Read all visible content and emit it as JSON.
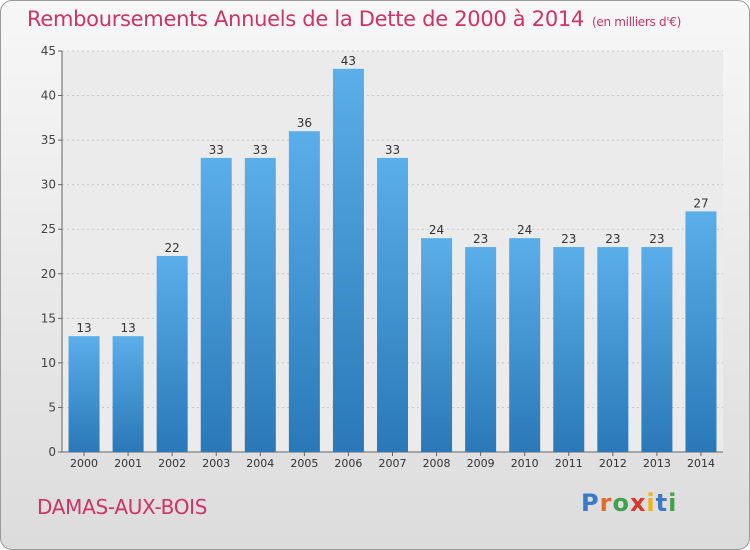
{
  "header": {
    "title": "Remboursements Annuels de la Dette de 2000 à 2014",
    "subtitle": "(en milliers d'€)"
  },
  "footer": {
    "commune": "DAMAS-AUX-BOIS",
    "logo_letters": [
      "P",
      "r",
      "o",
      "x",
      "i",
      "t",
      "i"
    ],
    "logo_colors": [
      "#3a78c9",
      "#e36c2a",
      "#3fa34d",
      "#d8372e",
      "#f0b419",
      "#3a78c9",
      "#3fa34d"
    ]
  },
  "chart_data": {
    "type": "bar",
    "title": "Remboursements Annuels de la Dette de 2000 à 2014",
    "subtitle": "(en milliers d'€)",
    "categories": [
      "2000",
      "2001",
      "2002",
      "2003",
      "2004",
      "2005",
      "2006",
      "2007",
      "2008",
      "2009",
      "2010",
      "2011",
      "2012",
      "2013",
      "2014"
    ],
    "values": [
      13,
      13,
      22,
      33,
      33,
      36,
      43,
      33,
      24,
      23,
      24,
      23,
      23,
      23,
      27
    ],
    "ylim": [
      0,
      45
    ],
    "yticks": [
      0,
      5,
      10,
      15,
      20,
      25,
      30,
      35,
      40,
      45
    ],
    "grid": true,
    "bar_color_top": "#5aaee9",
    "bar_color_bottom": "#2a78b8"
  }
}
